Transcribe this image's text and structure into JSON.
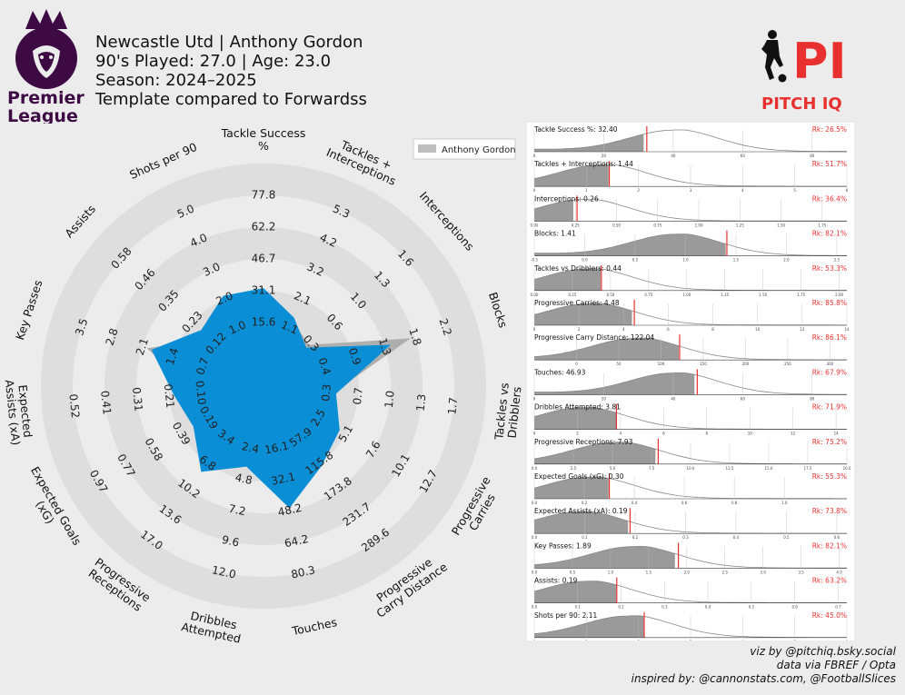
{
  "title": {
    "line1": "Newcastle Utd | Anthony Gordon",
    "line2": "90's Played: 27.0 | Age: 23.0",
    "line3": "Season: 2024–2025",
    "line4": "Template compared to Forwardss"
  },
  "logos": {
    "premier_league": {
      "word1": "Premier",
      "word2": "League"
    },
    "pitch_iq": {
      "mark": "PI",
      "text": "PITCH IQ"
    }
  },
  "colors": {
    "player": "#0a8fd6",
    "median": "#a8a8a8",
    "ring": "#dedede",
    "accent": "#e8312f",
    "kde_fill": "#9a9a9a",
    "pl_purple": "#3d0a44"
  },
  "chart_data": [
    {
      "type": "radar",
      "legend": {
        "label": "Anthony Gordon",
        "position": "top-right"
      },
      "metrics": [
        {
          "label": "Tackle Success %",
          "ticks": [
            "15.6",
            "31.1",
            "46.7",
            "62.2",
            "77.8"
          ],
          "player": 32.4,
          "median": 28.0
        },
        {
          "label": "Tackles + Interceptions",
          "ticks": [
            "1.1",
            "2.1",
            "3.2",
            "4.2",
            "5.3"
          ],
          "player": 1.44,
          "median": 1.3
        },
        {
          "label": "Interceptions",
          "ticks": [
            "0.3",
            "0.6",
            "1.0",
            "1.3",
            "1.6"
          ],
          "player": 0.26,
          "median": 0.3
        },
        {
          "label": "Blocks",
          "ticks": [
            "0.4",
            "0.9",
            "1.3",
            "1.8",
            "2.2"
          ],
          "player": 1.41,
          "median": 1.7
        },
        {
          "label": "Tackles vs Dribblers",
          "ticks": [
            "0.3",
            "0.7",
            "1.0",
            "1.3",
            "1.7"
          ],
          "player": 0.44,
          "median": 0.4
        },
        {
          "label": "Progressive Carries",
          "ticks": [
            "2.5",
            "5.1",
            "7.6",
            "10.1",
            "12.7"
          ],
          "player": 4.48,
          "median": 3.1
        },
        {
          "label": "Progressive Carry Distance",
          "ticks": [
            "57.9",
            "115.8",
            "173.8",
            "231.7",
            "289.6"
          ],
          "player": 122.04,
          "median": 90.0
        },
        {
          "label": "Touches",
          "ticks": [
            "16.1",
            "32.1",
            "48.2",
            "64.2",
            "80.3"
          ],
          "player": 46.93,
          "median": 48.2
        },
        {
          "label": "Dribbles Attempted",
          "ticks": [
            "2.4",
            "4.8",
            "7.2",
            "9.6",
            "12.0"
          ],
          "player": 3.81,
          "median": 2.4
        },
        {
          "label": "Progressive Receptions",
          "ticks": [
            "3.4",
            "6.8",
            "10.2",
            "13.6",
            "17.0"
          ],
          "player": 7.93,
          "median": 6.8
        },
        {
          "label": "Expected Goals (xG)",
          "ticks": [
            "0.19",
            "0.39",
            "0.58",
            "0.77",
            "0.97"
          ],
          "player": 0.3,
          "median": 0.28
        },
        {
          "label": "Expected Assists (xA)",
          "ticks": [
            "0.10",
            "0.21",
            "0.31",
            "0.41",
            "0.52"
          ],
          "player": 0.19,
          "median": 0.12
        },
        {
          "label": "Key Passes",
          "ticks": [
            "0.7",
            "1.4",
            "2.1",
            "2.8",
            "3.5"
          ],
          "player": 1.89,
          "median": 2.0
        },
        {
          "label": "Assists",
          "ticks": [
            "0.12",
            "0.23",
            "0.35",
            "0.46",
            "0.58"
          ],
          "player": 0.19,
          "median": 0.14
        },
        {
          "label": "Shots per 90",
          "ticks": [
            "1.0",
            "2.0",
            "3.0",
            "4.0",
            "5.0"
          ],
          "player": 2.11,
          "median": 2.0
        }
      ]
    },
    {
      "type": "area",
      "description": "distribution plots",
      "rows": [
        {
          "label": "Tackle Success %: 32.40",
          "rank": "Rk: 26.5%",
          "value": 32.4,
          "xmin": 0,
          "xmax": 90,
          "ticks": [
            "0",
            "20",
            "40",
            "60",
            "80"
          ],
          "peak": 40
        },
        {
          "label": "Tackles + Interceptions: 1.44",
          "rank": "Rk: 51.7%",
          "value": 1.44,
          "xmin": 0,
          "xmax": 6,
          "ticks": [
            "0",
            "1",
            "2",
            "3",
            "4",
            "5",
            "6"
          ],
          "peak": 1.3
        },
        {
          "label": "Interceptions: 0.26",
          "rank": "Rk: 36.4%",
          "value": 0.26,
          "xmin": 0,
          "xmax": 1.9,
          "ticks": [
            "0.00",
            "0.25",
            "0.50",
            "0.75",
            "1.00",
            "1.25",
            "1.50",
            "1.75"
          ],
          "peak": 0.3
        },
        {
          "label": "Blocks: 1.41",
          "rank": "Rk: 82.1%",
          "value": 1.41,
          "xmin": -0.5,
          "xmax": 2.6,
          "ticks": [
            "-0.5",
            "0.0",
            "0.5",
            "1.0",
            "1.5",
            "2.0",
            "2.5"
          ],
          "peak": 0.9
        },
        {
          "label": "Tackles vs Dribblers: 0.44",
          "rank": "Rk: 53.3%",
          "value": 0.44,
          "xmin": 0,
          "xmax": 2.05,
          "ticks": [
            "0.00",
            "0.25",
            "0.50",
            "0.75",
            "1.00",
            "1.25",
            "1.50",
            "1.75",
            "2.00"
          ],
          "peak": 0.35
        },
        {
          "label": "Progressive Carries: 4.48",
          "rank": "Rk: 85.8%",
          "value": 4.48,
          "xmin": 0,
          "xmax": 14,
          "ticks": [
            "0",
            "2",
            "4",
            "6",
            "8",
            "10",
            "12",
            "14"
          ],
          "peak": 2.5
        },
        {
          "label": "Progressive Carry Distance: 122.04",
          "rank": "Rk: 86.1%",
          "value": 122.04,
          "xmin": -50,
          "xmax": 320,
          "ticks": [
            "0",
            "50",
            "100",
            "150",
            "200",
            "250",
            "300"
          ],
          "peak": 70
        },
        {
          "label": "Touches: 46.93",
          "rank": "Rk: 67.9%",
          "value": 46.93,
          "xmin": 0,
          "xmax": 90,
          "ticks": [
            "0",
            "20",
            "40",
            "60",
            "80"
          ],
          "peak": 40
        },
        {
          "label": "Dribbles Attempted: 3.81",
          "rank": "Rk: 71.9%",
          "value": 3.81,
          "xmin": 0,
          "xmax": 14.5,
          "ticks": [
            "0",
            "2",
            "4",
            "6",
            "8",
            "10",
            "12",
            "14"
          ],
          "peak": 2.2
        },
        {
          "label": "Progressive Receptions: 7.93",
          "rank": "Rk: 75.2%",
          "value": 7.93,
          "xmin": 0,
          "xmax": 20,
          "ticks": [
            "0.0",
            "2.5",
            "5.0",
            "7.5",
            "10.0",
            "12.5",
            "15.0",
            "17.5",
            "20.0"
          ],
          "peak": 5.2
        },
        {
          "label": "Expected Goals (xG): 0.30",
          "rank": "Rk: 55.3%",
          "value": 0.3,
          "xmin": 0,
          "xmax": 1.25,
          "ticks": [
            "0.0",
            "0.2",
            "0.4",
            "0.6",
            "0.8",
            "1.0"
          ],
          "peak": 0.22
        },
        {
          "label": "Expected Assists (xA): 0.19",
          "rank": "Rk: 73.8%",
          "value": 0.19,
          "xmin": 0,
          "xmax": 0.62,
          "ticks": [
            "0.0",
            "0.1",
            "0.2",
            "0.3",
            "0.4",
            "0.5",
            "0.6"
          ],
          "peak": 0.09
        },
        {
          "label": "Key Passes: 1.89",
          "rank": "Rk: 82.1%",
          "value": 1.89,
          "xmin": 0,
          "xmax": 4.1,
          "ticks": [
            "0.0",
            "0.5",
            "1.0",
            "1.5",
            "2.0",
            "2.5",
            "3.0",
            "3.5",
            "4.0"
          ],
          "peak": 1.3
        },
        {
          "label": "Assists: 0.19",
          "rank": "Rk: 63.2%",
          "value": 0.19,
          "xmin": 0,
          "xmax": 0.72,
          "ticks": [
            "0.0",
            "0.1",
            "0.2",
            "0.3",
            "0.4",
            "0.5",
            "0.6",
            "0.7"
          ],
          "peak": 0.12
        },
        {
          "label": "Shots per 90: 2.11",
          "rank": "Rk: 45.0%",
          "value": 2.11,
          "xmin": 0,
          "xmax": 6,
          "ticks": [
            "0",
            "1",
            "2",
            "3",
            "4",
            "5",
            "6"
          ],
          "peak": 1.8
        }
      ]
    }
  ],
  "credits": {
    "line1": "viz by @pitchiq.bsky.social",
    "line2": "data via FBREF / Opta",
    "line3": "inspired by: @cannonstats.com, @FootballSlices"
  }
}
